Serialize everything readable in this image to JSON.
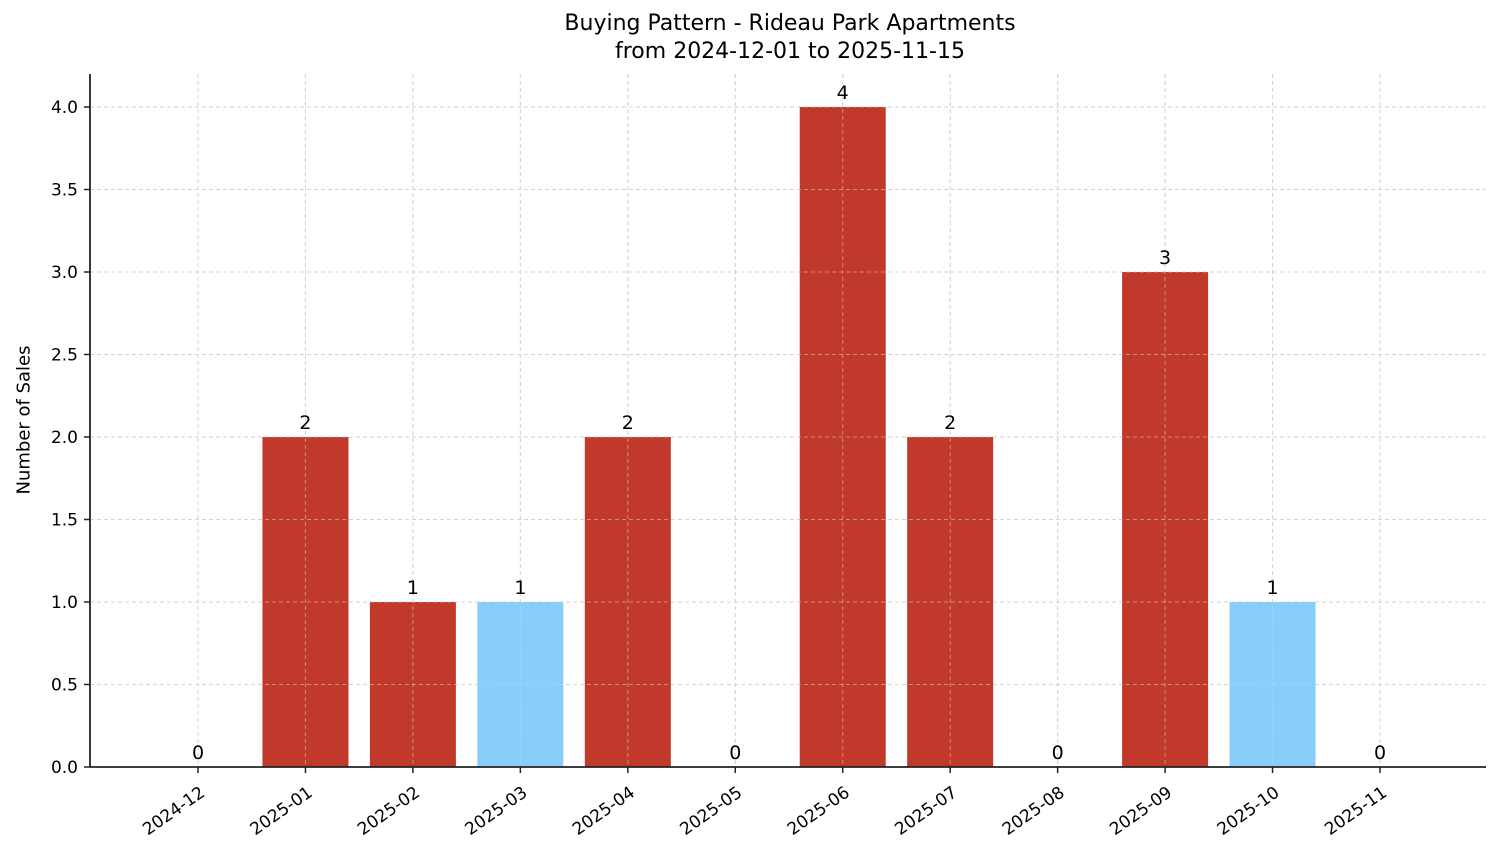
{
  "chart_data": {
    "type": "bar",
    "title": "Buying Pattern - Rideau Park Apartments",
    "subtitle": "from 2024-12-01 to 2025-11-15",
    "xlabel": "",
    "ylabel": "Number of Sales",
    "categories": [
      "2024-12",
      "2025-01",
      "2025-02",
      "2025-03",
      "2025-04",
      "2025-05",
      "2025-06",
      "2025-07",
      "2025-08",
      "2025-09",
      "2025-10",
      "2025-11"
    ],
    "values": [
      0,
      2,
      1,
      1,
      2,
      0,
      4,
      2,
      0,
      3,
      1,
      0
    ],
    "bar_colors": [
      "#c0392b",
      "#c0392b",
      "#c0392b",
      "#87cefa",
      "#c0392b",
      "#c0392b",
      "#c0392b",
      "#c0392b",
      "#c0392b",
      "#c0392b",
      "#87cefa",
      "#c0392b"
    ],
    "data_labels": [
      "0",
      "2",
      "1",
      "1",
      "2",
      "0",
      "4",
      "2",
      "0",
      "3",
      "1",
      "0"
    ],
    "ylim": [
      0,
      4.2
    ],
    "yticks": [
      "0.0",
      "0.5",
      "1.0",
      "1.5",
      "2.0",
      "2.5",
      "3.0",
      "3.5",
      "4.0"
    ],
    "grid": true,
    "grid_style": "dashed",
    "legend": null,
    "colors": {
      "primary": "#c0392b",
      "highlight": "#87cefa",
      "grid": "#d3d3d3"
    }
  }
}
